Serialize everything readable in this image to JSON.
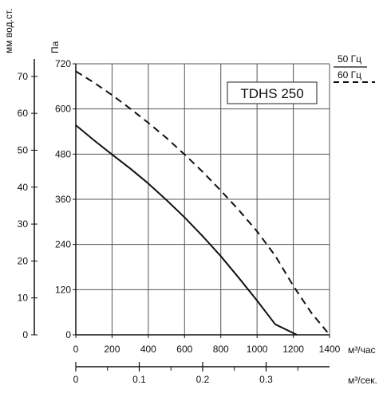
{
  "chart_data": {
    "type": "line",
    "title": "TDHS 250",
    "primary_y": {
      "label": "Па",
      "ticks": [
        0,
        120,
        240,
        360,
        480,
        600,
        720
      ],
      "ylim": [
        0,
        720
      ]
    },
    "secondary_y": {
      "label": "мм вод.ст.",
      "ticks": [
        0,
        10,
        20,
        30,
        40,
        50,
        60,
        70
      ]
    },
    "x": {
      "label": "м³/час",
      "ticks": [
        0,
        200,
        400,
        600,
        800,
        1000,
        1200,
        1400
      ],
      "xlim": [
        0,
        1400
      ]
    },
    "secondary_x": {
      "label": "м³/сек.",
      "ticks": [
        "0",
        "0.1",
        "0.2",
        "0.3"
      ],
      "tick_values": [
        0,
        0.1,
        0.2,
        0.3
      ]
    },
    "grid": true,
    "legend": {
      "position": "top-right"
    },
    "series": [
      {
        "name": "50 Гц",
        "style": "solid",
        "color": "#111111",
        "points": [
          [
            0,
            557
          ],
          [
            100,
            517
          ],
          [
            200,
            479
          ],
          [
            300,
            442
          ],
          [
            400,
            402
          ],
          [
            500,
            358
          ],
          [
            600,
            312
          ],
          [
            700,
            262
          ],
          [
            800,
            209
          ],
          [
            900,
            151
          ],
          [
            1000,
            91
          ],
          [
            1100,
            28
          ],
          [
            1220,
            0
          ]
        ]
      },
      {
        "name": "60 Гц",
        "style": "dashed",
        "color": "#111111",
        "points": [
          [
            0,
            700
          ],
          [
            100,
            670
          ],
          [
            200,
            637
          ],
          [
            300,
            601
          ],
          [
            400,
            563
          ],
          [
            500,
            523
          ],
          [
            600,
            479
          ],
          [
            700,
            433
          ],
          [
            800,
            383
          ],
          [
            900,
            331
          ],
          [
            1000,
            275
          ],
          [
            1100,
            210
          ],
          [
            1200,
            130
          ],
          [
            1300,
            58
          ],
          [
            1400,
            0
          ]
        ]
      }
    ]
  }
}
